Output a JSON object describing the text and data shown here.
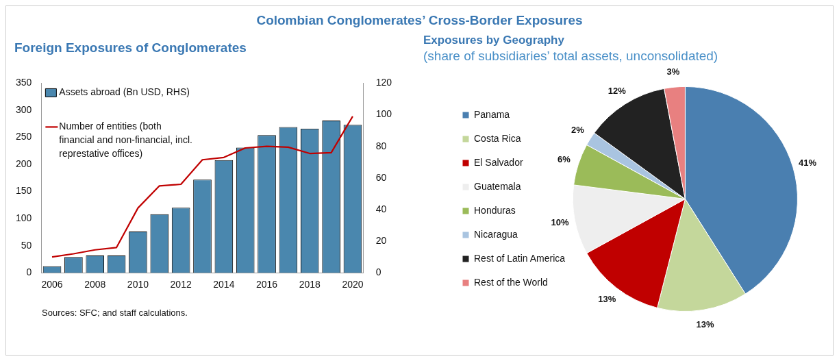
{
  "chart_data": [
    {
      "type": "other",
      "title": "Colombian Conglomerates’ Cross-Border Exposures"
    },
    {
      "type": "bar",
      "title": "Foreign Exposures of Conglomerates",
      "categories": [
        "2006",
        null,
        "2008",
        null,
        "2010",
        null,
        "2012",
        null,
        "2014",
        null,
        "2016",
        null,
        "2018",
        null,
        "2020"
      ],
      "series": [
        {
          "name": "Assets abroad (Bn USD, RHS)",
          "type": "bar",
          "color": "#4a87ae",
          "values": [
            12,
            29,
            32,
            32,
            76,
            108,
            120,
            172,
            208,
            231,
            254,
            269,
            266,
            281,
            273
          ]
        },
        {
          "name": "Number of entities (both financial and non-financial, incl. represtative offices)",
          "type": "line",
          "axis": "y2",
          "color": "#c00000",
          "values": [
            10,
            12,
            14.5,
            16,
            41,
            55,
            56,
            71.5,
            73,
            79,
            80,
            79.5,
            75.5,
            76,
            99
          ]
        }
      ],
      "ylim": [
        0,
        350
      ],
      "yticks": [
        0,
        50,
        100,
        150,
        200,
        250,
        300,
        350
      ],
      "y2lim": [
        0,
        120
      ],
      "y2ticks": [
        0,
        20,
        40,
        60,
        80,
        100,
        120
      ],
      "grid": false,
      "legend": "top left",
      "marker": "none",
      "annotations": [
        "Sources: SFC; and staff calculations."
      ]
    },
    {
      "type": "pie",
      "title": "Exposures by Geography",
      "subtitle": "(share of subsidiaries’ total assets, unconsolidated)",
      "categories": [
        "Panama",
        "Costa Rica",
        "El Salvador",
        "Guatemala",
        "Honduras",
        "Nicaragua",
        "Rest of Latin America",
        "Rest of the World"
      ],
      "values": [
        41,
        13,
        13,
        10,
        6,
        2,
        12,
        3
      ],
      "colors": [
        "#4a7fb0",
        "#c4d79b",
        "#c00000",
        "#eeeeee",
        "#9bbb59",
        "#a9c4e0",
        "#222222",
        "#e88080"
      ],
      "value_labels": [
        "41%",
        "13%",
        "13%",
        "10%",
        "6%",
        "2%",
        "12%",
        "3%"
      ],
      "legend": "left"
    }
  ]
}
